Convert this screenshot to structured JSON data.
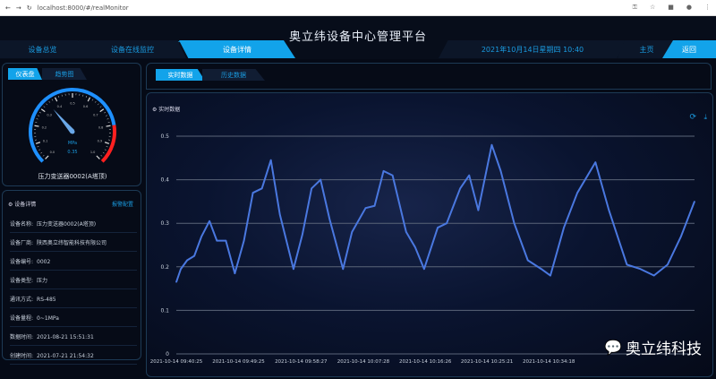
{
  "browser": {
    "url": "localhost:8000/#/realMonitor"
  },
  "header": {
    "title": "奥立纬设备中心管理平台",
    "datetime": "2021年10月14日星期四 10:40"
  },
  "nav": {
    "items": [
      {
        "label": "设备总览"
      },
      {
        "label": "设备在线监控"
      },
      {
        "label": "设备详情",
        "active": true
      }
    ],
    "home": "主页",
    "back": "返回"
  },
  "gauge_panel": {
    "tabs": [
      "仪表盘",
      "趋势图"
    ],
    "unit": "MPa",
    "value": 0.35,
    "value_text": "0.35",
    "range": [
      0,
      1
    ],
    "ticks": [
      "0.0",
      "0.1",
      "0.2",
      "0.3",
      "0.4",
      "0.5",
      "0.6",
      "0.7",
      "0.8",
      "0.9",
      "1.0"
    ],
    "device_label": "压力变送器0002(A塔顶)",
    "colors": {
      "arc": "#1e90ff",
      "alarm": "#ff2020"
    }
  },
  "details": {
    "title": "设备详情",
    "link": "报警配置",
    "rows": [
      {
        "label": "设备名称:",
        "value": "压力变送器0002(A塔顶)"
      },
      {
        "label": "设备厂商:",
        "value": "陕西奥立纬智能科技有限公司"
      },
      {
        "label": "设备编号:",
        "value": "0002"
      },
      {
        "label": "设备类型:",
        "value": "压力"
      },
      {
        "label": "通讯方式:",
        "value": "RS-485"
      },
      {
        "label": "设备量程:",
        "value": "0~1MPa"
      },
      {
        "label": "数据时间:",
        "value": "2021-08-21 15:51:31"
      },
      {
        "label": "创建时间:",
        "value": "2021-07-21 21:54:32"
      }
    ]
  },
  "main": {
    "tabs": [
      "实时数据",
      "历史数据"
    ]
  },
  "chart_data": {
    "type": "line",
    "title": "实时数据",
    "ylim": [
      0,
      0.5
    ],
    "yticks": [
      "0",
      "0.1",
      "0.2",
      "0.3",
      "0.4",
      "0.5"
    ],
    "grid": true,
    "xticks": [
      "2021-10-14 09:40:25",
      "2021-10-14 09:49:25",
      "2021-10-14 09:58:27",
      "2021-10-14 10:07:28",
      "2021-10-14 10:16:26",
      "2021-10-14 10:25:21",
      "2021-10-14 10:34:18"
    ],
    "color": "#4a78e0",
    "x": [
      "09:40:25",
      "09:41:04",
      "09:41:59",
      "09:43:01",
      "09:44:04",
      "09:45:13",
      "09:46:17",
      "09:47:35",
      "09:48:53",
      "09:50:12",
      "09:51:30",
      "09:52:48",
      "09:54:06",
      "09:55:24",
      "09:57:22",
      "09:58:40",
      "09:59:59",
      "10:01:17",
      "10:02:35",
      "10:04:32",
      "10:05:50",
      "10:07:48",
      "10:09:06",
      "10:10:24",
      "10:11:42",
      "10:13:40",
      "10:14:58",
      "10:16:16",
      "10:18:14",
      "10:19:32",
      "10:21:29",
      "10:22:47",
      "10:24:06",
      "10:26:03",
      "10:27:21",
      "10:29:18",
      "10:31:16",
      "10:33:13",
      "10:34:32",
      "10:36:29",
      "10:38:26",
      "10:41:03",
      "10:43:00",
      "10:45:36",
      "10:47:33",
      "10:49:31",
      "10:51:29",
      "10:53:26",
      "10:55:23"
    ],
    "values": [
      0.165,
      0.195,
      0.215,
      0.225,
      0.27,
      0.305,
      0.26,
      0.26,
      0.185,
      0.26,
      0.37,
      0.38,
      0.445,
      0.32,
      0.195,
      0.275,
      0.38,
      0.4,
      0.31,
      0.195,
      0.28,
      0.335,
      0.34,
      0.42,
      0.41,
      0.28,
      0.245,
      0.195,
      0.29,
      0.3,
      0.38,
      0.41,
      0.33,
      0.48,
      0.42,
      0.3,
      0.215,
      0.195,
      0.18,
      0.29,
      0.37,
      0.44,
      0.33,
      0.205,
      0.195,
      0.18,
      0.205,
      0.27,
      0.35
    ]
  },
  "watermark": "奥立纬科技"
}
